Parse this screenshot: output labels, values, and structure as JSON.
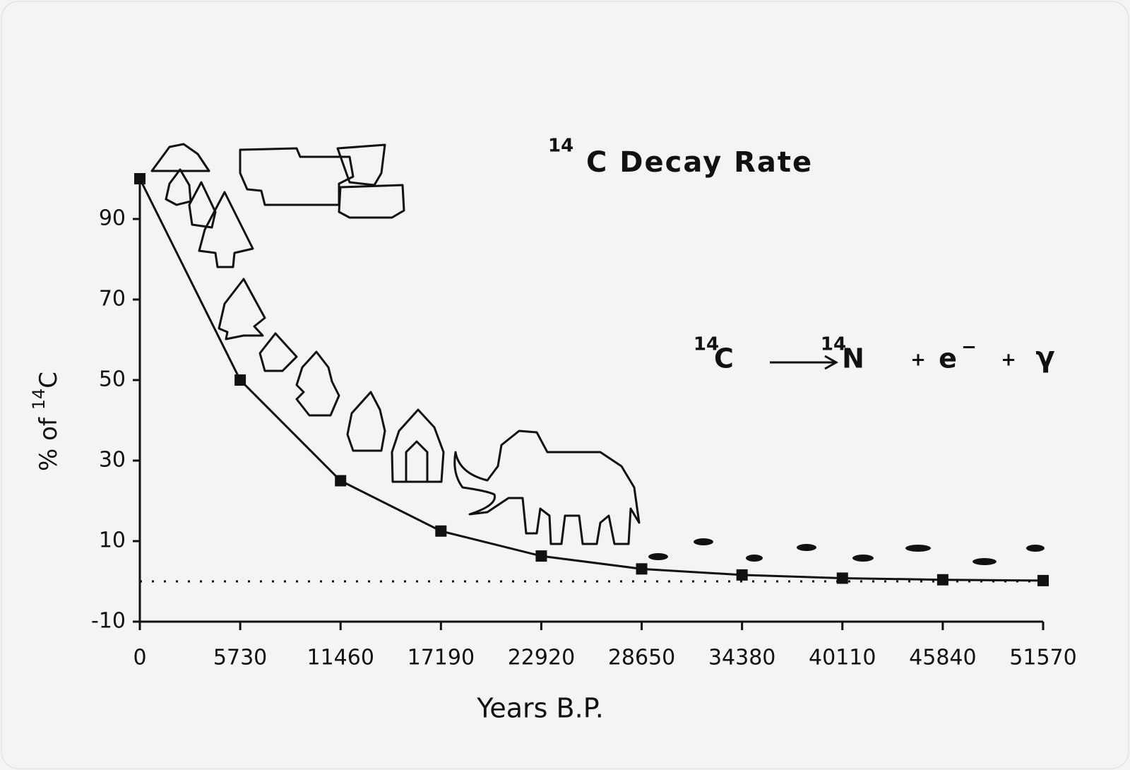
{
  "chart_data": {
    "type": "line",
    "title_sup": "14",
    "title": "C Decay Rate",
    "ylabel": [
      "% of ",
      "14",
      "C"
    ],
    "xlabel": "Years B.P.",
    "equation": [
      "14",
      "C",
      "14",
      "N",
      "+",
      "e",
      "−",
      "+",
      "γ"
    ],
    "x": [
      0,
      5730,
      11460,
      17190,
      22920,
      28650,
      34380,
      40110,
      45840,
      51570
    ],
    "values": [
      100,
      50,
      25,
      12.5,
      6.3,
      3.1,
      1.6,
      0.8,
      0.4,
      0.2
    ],
    "color": "#111111",
    "xlim": [
      0,
      51570
    ],
    "xticks": [
      0,
      5730,
      11460,
      17190,
      22920,
      28650,
      34380,
      40110,
      45840,
      51570
    ],
    "ylim": [
      -10,
      100
    ],
    "yticks": [
      -10,
      10,
      30,
      50,
      70,
      90
    ],
    "zero_line": true
  }
}
